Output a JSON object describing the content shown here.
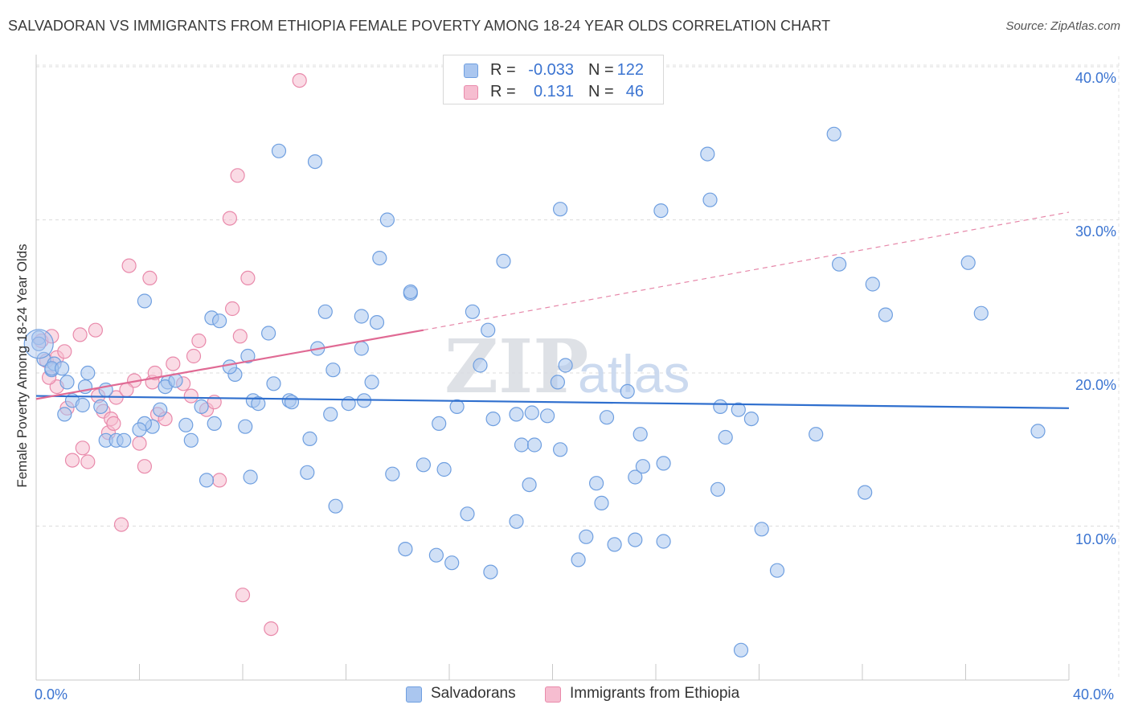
{
  "title": "SALVADORAN VS IMMIGRANTS FROM ETHIOPIA FEMALE POVERTY AMONG 18-24 YEAR OLDS CORRELATION CHART",
  "source": "Source: ZipAtlas.com",
  "watermark": {
    "part1": "ZIP",
    "part2": "atlas"
  },
  "legend_top": {
    "rows": [
      {
        "r_label": "R =",
        "r_value": "-0.033",
        "n_label": "N =",
        "n_value": "122",
        "color": "#aac6ef",
        "border": "#6f9fe0"
      },
      {
        "r_label": "R =",
        "r_value": "0.131",
        "n_label": "N =",
        "n_value": "46",
        "color": "#f6bdd0",
        "border": "#e98aab"
      }
    ]
  },
  "legend_bottom": {
    "series1": "Salvadorans",
    "series2": "Immigrants from Ethiopia"
  },
  "axes": {
    "x_min_label": "0.0%",
    "x_max_label": "40.0%",
    "y_ticks": [
      "10.0%",
      "20.0%",
      "30.0%",
      "40.0%"
    ],
    "ylabel": "Female Poverty Among 18-24 Year Olds"
  },
  "chart_data": {
    "type": "scatter",
    "title": "SALVADORAN VS IMMIGRANTS FROM ETHIOPIA FEMALE POVERTY AMONG 18-24 YEAR OLDS CORRELATION CHART",
    "xlabel": "",
    "ylabel": "Female Poverty Among 18-24 Year Olds",
    "xlim": [
      0,
      40
    ],
    "ylim": [
      0,
      40
    ],
    "y_ticks": [
      10,
      20,
      30,
      40
    ],
    "grid": true,
    "series": [
      {
        "name": "Salvadorans",
        "color": "#6f9fe0",
        "fill": "#aac6ef",
        "trend": {
          "x1": 0,
          "y1": 18.5,
          "x2": 40,
          "y2": 17.7,
          "style": "solid",
          "color": "#2f6fce"
        },
        "points": [
          [
            0.1,
            22.3
          ],
          [
            0.1,
            21.9
          ],
          [
            0.3,
            20.9
          ],
          [
            0.6,
            20.2
          ],
          [
            0.7,
            20.6
          ],
          [
            1.2,
            19.4
          ],
          [
            1.9,
            19.1
          ],
          [
            0.6,
            20.3
          ],
          [
            1.4,
            18.2
          ],
          [
            1.1,
            17.3
          ],
          [
            2.7,
            18.9
          ],
          [
            1.8,
            17.9
          ],
          [
            2.5,
            17.8
          ],
          [
            2.7,
            15.6
          ],
          [
            3.1,
            15.6
          ],
          [
            4.2,
            24.7
          ],
          [
            4.8,
            17.6
          ],
          [
            4.5,
            16.5
          ],
          [
            4.2,
            16.7
          ],
          [
            4.0,
            16.3
          ],
          [
            5.1,
            19.4
          ],
          [
            5.0,
            19.1
          ],
          [
            5.8,
            16.6
          ],
          [
            6.0,
            15.6
          ],
          [
            6.4,
            17.8
          ],
          [
            6.9,
            16.7
          ],
          [
            6.8,
            23.6
          ],
          [
            7.7,
            19.9
          ],
          [
            7.5,
            20.4
          ],
          [
            6.6,
            13.0
          ],
          [
            8.1,
            16.5
          ],
          [
            8.2,
            21.1
          ],
          [
            8.4,
            18.2
          ],
          [
            8.6,
            18.0
          ],
          [
            9.0,
            22.6
          ],
          [
            9.2,
            19.3
          ],
          [
            9.8,
            18.2
          ],
          [
            9.9,
            18.1
          ],
          [
            10.5,
            13.5
          ],
          [
            10.6,
            15.7
          ],
          [
            11.2,
            24.0
          ],
          [
            10.9,
            21.6
          ],
          [
            11.4,
            17.3
          ],
          [
            11.5,
            20.2
          ],
          [
            11.6,
            11.3
          ],
          [
            12.1,
            18.0
          ],
          [
            12.6,
            23.7
          ],
          [
            12.6,
            21.6
          ],
          [
            13.0,
            19.4
          ],
          [
            13.2,
            23.3
          ],
          [
            13.3,
            27.5
          ],
          [
            13.6,
            30.0
          ],
          [
            13.8,
            13.4
          ],
          [
            14.3,
            8.5
          ],
          [
            14.5,
            25.2
          ],
          [
            15.0,
            14.0
          ],
          [
            15.5,
            8.1
          ],
          [
            15.6,
            16.7
          ],
          [
            15.8,
            13.7
          ],
          [
            16.1,
            7.6
          ],
          [
            16.3,
            17.8
          ],
          [
            16.7,
            10.8
          ],
          [
            16.9,
            24.0
          ],
          [
            17.2,
            20.5
          ],
          [
            17.5,
            22.8
          ],
          [
            17.6,
            7.0
          ],
          [
            17.7,
            17.0
          ],
          [
            18.1,
            27.3
          ],
          [
            18.6,
            10.3
          ],
          [
            18.8,
            15.3
          ],
          [
            18.6,
            17.3
          ],
          [
            19.1,
            12.7
          ],
          [
            19.3,
            15.3
          ],
          [
            19.2,
            17.4
          ],
          [
            19.8,
            17.2
          ],
          [
            20.2,
            19.4
          ],
          [
            20.3,
            15.0
          ],
          [
            20.5,
            20.5
          ],
          [
            20.3,
            30.7
          ],
          [
            21.0,
            7.8
          ],
          [
            21.3,
            9.3
          ],
          [
            21.7,
            12.8
          ],
          [
            21.9,
            11.5
          ],
          [
            22.4,
            8.8
          ],
          [
            22.1,
            17.1
          ],
          [
            22.9,
            18.8
          ],
          [
            23.2,
            13.2
          ],
          [
            23.4,
            16.0
          ],
          [
            23.5,
            13.9
          ],
          [
            23.2,
            9.1
          ],
          [
            24.3,
            9.0
          ],
          [
            24.3,
            14.1
          ],
          [
            24.2,
            30.6
          ],
          [
            26.0,
            34.3
          ],
          [
            26.1,
            31.3
          ],
          [
            26.4,
            12.4
          ],
          [
            26.7,
            15.8
          ],
          [
            26.5,
            17.8
          ],
          [
            27.3,
            1.9
          ],
          [
            27.2,
            17.6
          ],
          [
            27.7,
            17.0
          ],
          [
            28.1,
            9.8
          ],
          [
            28.7,
            7.1
          ],
          [
            30.2,
            16.0
          ],
          [
            30.9,
            35.6
          ],
          [
            31.1,
            27.1
          ],
          [
            32.1,
            12.2
          ],
          [
            32.4,
            25.8
          ],
          [
            32.9,
            23.8
          ],
          [
            36.1,
            27.2
          ],
          [
            36.6,
            23.9
          ],
          [
            38.8,
            16.2
          ],
          [
            9.4,
            34.5
          ],
          [
            10.8,
            33.8
          ],
          [
            14.5,
            25.3
          ],
          [
            7.1,
            23.4
          ],
          [
            3.4,
            15.6
          ],
          [
            2.0,
            20.0
          ],
          [
            5.4,
            19.5
          ],
          [
            1.0,
            20.3
          ],
          [
            12.7,
            18.2
          ],
          [
            8.3,
            13.2
          ]
        ]
      },
      {
        "name": "Immigrants from Ethiopia",
        "color": "#e98aab",
        "fill": "#f6bdd0",
        "trend": {
          "x1": 0,
          "y1": 18.3,
          "x2": 15.0,
          "y2": 22.8,
          "dash_to_x": 40,
          "dash_to_y": 30.5,
          "style": "solid-then-dashed",
          "color": "#e06a94"
        },
        "points": [
          [
            0.2,
            22.1
          ],
          [
            0.4,
            20.8
          ],
          [
            0.6,
            22.4
          ],
          [
            0.8,
            21.0
          ],
          [
            1.2,
            17.7
          ],
          [
            0.8,
            19.1
          ],
          [
            1.7,
            22.5
          ],
          [
            1.8,
            15.1
          ],
          [
            2.0,
            14.2
          ],
          [
            2.3,
            22.8
          ],
          [
            2.6,
            17.5
          ],
          [
            2.8,
            16.1
          ],
          [
            2.9,
            17.0
          ],
          [
            3.1,
            18.4
          ],
          [
            3.3,
            10.1
          ],
          [
            3.6,
            27.0
          ],
          [
            3.8,
            19.5
          ],
          [
            4.0,
            15.4
          ],
          [
            4.2,
            13.9
          ],
          [
            4.4,
            26.2
          ],
          [
            4.5,
            19.4
          ],
          [
            4.7,
            17.3
          ],
          [
            5.0,
            17.0
          ],
          [
            5.3,
            20.6
          ],
          [
            5.7,
            19.3
          ],
          [
            6.1,
            21.1
          ],
          [
            6.3,
            22.1
          ],
          [
            6.6,
            17.6
          ],
          [
            6.9,
            18.1
          ],
          [
            7.1,
            13.0
          ],
          [
            7.5,
            30.1
          ],
          [
            7.6,
            24.2
          ],
          [
            7.8,
            32.9
          ],
          [
            7.9,
            22.4
          ],
          [
            8.0,
            5.5
          ],
          [
            8.2,
            26.2
          ],
          [
            9.1,
            3.3
          ],
          [
            10.2,
            39.1
          ],
          [
            1.4,
            14.3
          ],
          [
            3.5,
            18.9
          ],
          [
            1.1,
            21.4
          ],
          [
            0.5,
            19.7
          ],
          [
            3.0,
            16.7
          ],
          [
            6.0,
            18.5
          ],
          [
            4.6,
            20.0
          ],
          [
            2.4,
            18.5
          ]
        ]
      }
    ]
  }
}
